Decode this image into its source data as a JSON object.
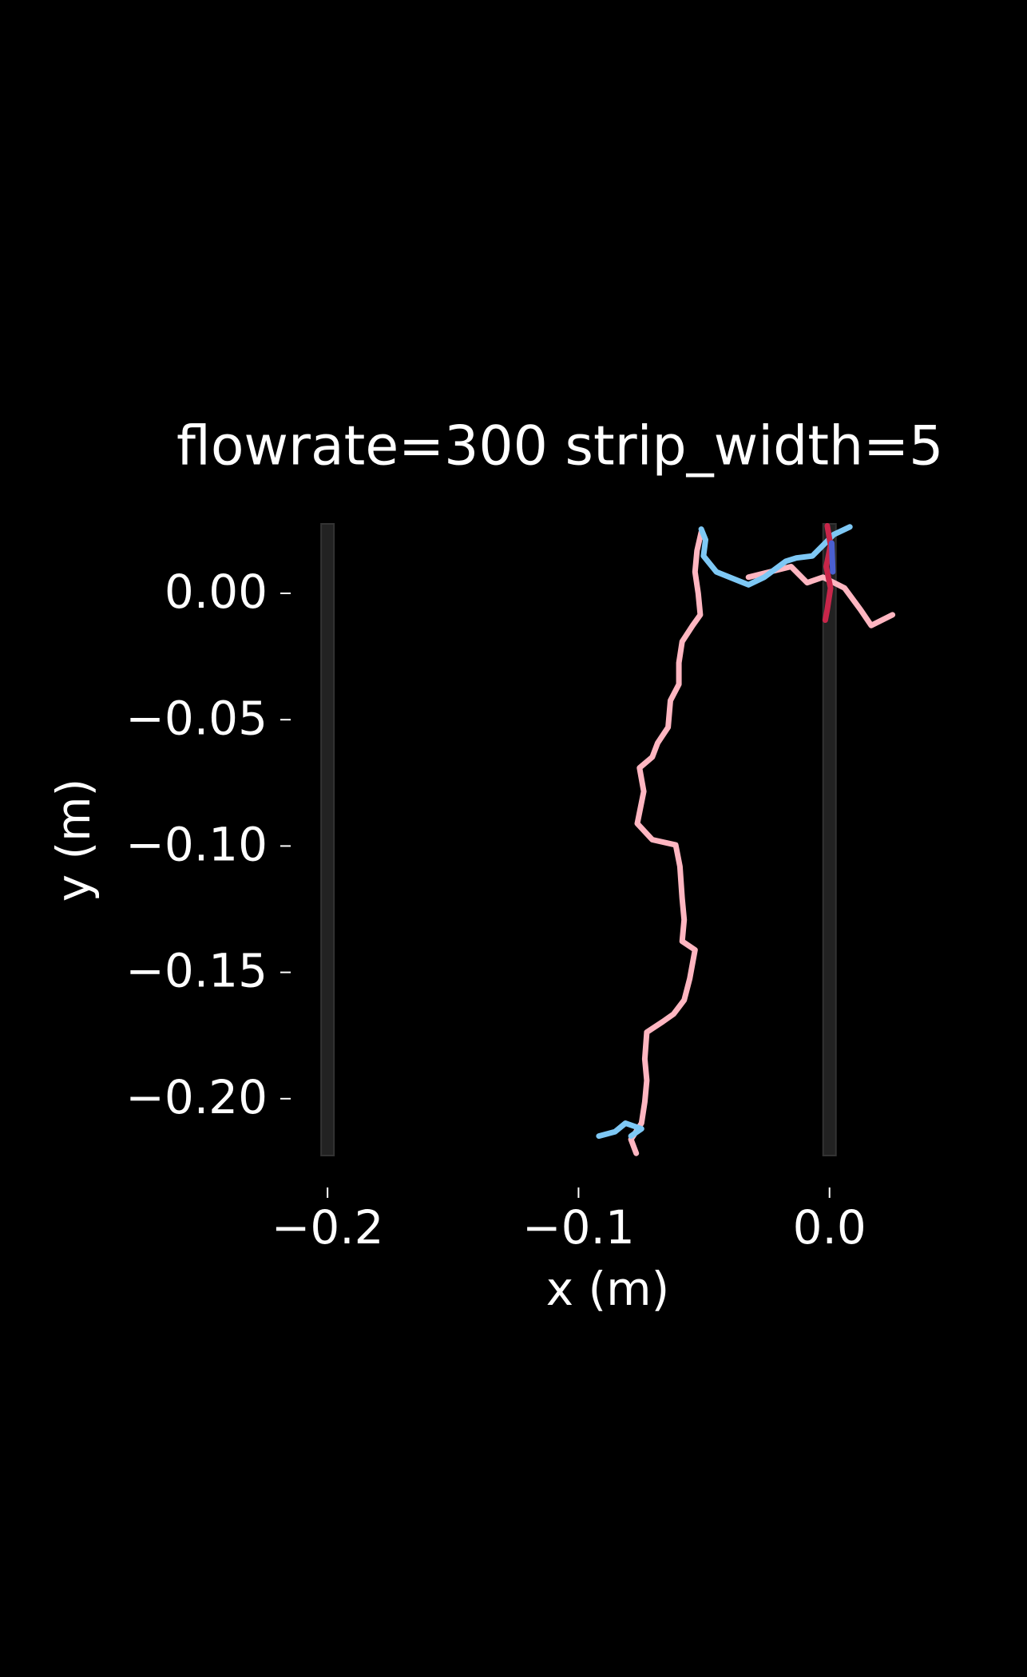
{
  "chart_data": {
    "type": "trajectory",
    "title": "flowrate=300 strip_width=5",
    "xlabel": "x (m)",
    "ylabel": "y (m)",
    "background": "#000000",
    "xlim": [
      -0.215,
      0.03
    ],
    "ylim": [
      -0.2225,
      0.0275
    ],
    "xticks": [
      {
        "value": -0.2,
        "label": "−0.2"
      },
      {
        "value": -0.1,
        "label": "−0.1"
      },
      {
        "value": 0,
        "label": "0.0"
      }
    ],
    "yticks": [
      {
        "value": 0,
        "label": "0.00"
      },
      {
        "value": -0.05,
        "label": "−0.05"
      },
      {
        "value": -0.1,
        "label": "−0.10"
      },
      {
        "value": -0.15,
        "label": "−0.15"
      },
      {
        "value": -0.2,
        "label": "−0.20"
      }
    ],
    "strips": {
      "x": [
        -0.2,
        0
      ],
      "color": "#222222"
    },
    "series": [
      {
        "color": "#ffb6c1",
        "x": [
          -0.077,
          -0.0791,
          -0.0749,
          -0.0736,
          -0.0728,
          -0.0736,
          -0.0728,
          -0.0664,
          -0.0621,
          -0.0579,
          -0.0557,
          -0.0536,
          -0.0587,
          -0.0579,
          -0.0587,
          -0.0596,
          -0.0613,
          -0.0706,
          -0.0766,
          -0.074,
          -0.0757,
          -0.0706,
          -0.0685,
          -0.0643,
          -0.0634,
          -0.06,
          -0.06,
          -0.0587,
          -0.0545,
          -0.0515,
          -0.0523,
          -0.0536,
          -0.0528,
          -0.0511,
          null,
          -0.0323,
          -0.0238,
          -0.0153,
          -0.0089,
          -0.0026,
          0.006,
          0.0123,
          0.0166,
          0.0251
        ],
        "y": [
          -0.2216,
          -0.2161,
          -0.2097,
          -0.2013,
          -0.1928,
          -0.1843,
          -0.1737,
          -0.1695,
          -0.1665,
          -0.161,
          -0.1525,
          -0.1411,
          -0.1377,
          -0.1292,
          -0.1208,
          -0.1081,
          -0.0996,
          -0.0975,
          -0.0911,
          -0.0784,
          -0.0691,
          -0.0648,
          -0.0593,
          -0.053,
          -0.0424,
          -0.036,
          -0.0275,
          -0.0191,
          -0.0127,
          -0.0085,
          0,
          0.0085,
          0.0169,
          0.0242,
          null,
          0.0064,
          0.0085,
          0.0106,
          0.0042,
          0.0064,
          0.0021,
          -0.0064,
          -0.0127,
          -0.0085
        ]
      },
      {
        "color": "#7ec8f5",
        "x": [
          -0.0919,
          -0.0855,
          -0.0813,
          -0.0749,
          -0.0791,
          null,
          -0.0511,
          -0.0494,
          -0.0502,
          -0.0451,
          -0.0366,
          -0.0323,
          -0.026,
          -0.0174,
          -0.0132,
          -0.0068,
          0.0017,
          0.0081
        ],
        "y": [
          -0.2148,
          -0.2131,
          -0.2097,
          -0.2119,
          -0.2148,
          null,
          0.0254,
          0.0212,
          0.0148,
          0.0085,
          0.0051,
          0.0034,
          0.0064,
          0.0127,
          0.014,
          0.0148,
          0.0233,
          0.0263
        ]
      },
      {
        "color": "#c8264a",
        "x": [
          -0.0009,
          0.0004,
          -0.0013,
          0.0004,
          -0.0009,
          -0.0017
        ],
        "y": [
          0.0267,
          0.0191,
          0.0106,
          0.0021,
          -0.0064,
          -0.0106
        ]
      },
      {
        "color": "#4a5fd0",
        "x": [
          0.0009,
          0.0013
        ],
        "y": [
          0.0199,
          0.0085
        ]
      }
    ]
  }
}
